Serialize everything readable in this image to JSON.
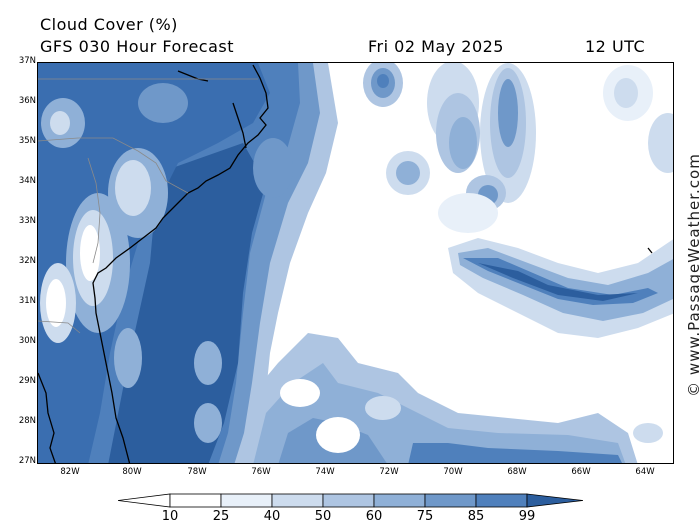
{
  "header": {
    "title": "Cloud Cover (%)",
    "subtitle": "GFS 030 Hour Forecast",
    "date": "Fri 02 May 2025",
    "time": "12 UTC"
  },
  "map": {
    "lat_labels": [
      "37N",
      "36N",
      "35N",
      "34N",
      "33N",
      "32N",
      "31N",
      "30N",
      "29N",
      "28N",
      "27N"
    ],
    "lon_labels": [
      "82W",
      "80W",
      "78W",
      "76W",
      "74W",
      "72W",
      "70W",
      "68W",
      "66W",
      "64W"
    ],
    "colors": {
      "land": "#2e6aae",
      "coast": "#000000",
      "border": "#8a8a8a",
      "level_0": "#ffffff",
      "level_10": "#e8f0f9",
      "level_25": "#cddcee",
      "level_40": "#aec5e2",
      "level_50": "#8fb0d7",
      "level_60": "#6f98c9",
      "level_75": "#4f80bc",
      "level_85": "#3a6eb0",
      "level_99": "#2c5e9e"
    }
  },
  "legend": {
    "labels": [
      "10",
      "25",
      "40",
      "50",
      "60",
      "75",
      "85",
      "99"
    ]
  },
  "credit": "© www.PassageWeather.com"
}
